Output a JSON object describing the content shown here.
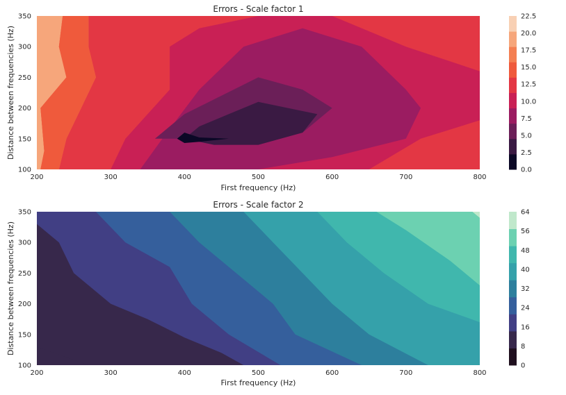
{
  "chart_data": [
    {
      "type": "contour",
      "title": "Errors - Scale factor 1",
      "xlabel": "First frequency (Hz)",
      "ylabel": "Distance between frequencies (Hz)",
      "xlim": [
        200,
        800
      ],
      "ylim": [
        100,
        350
      ],
      "xticks": [
        200,
        300,
        400,
        500,
        600,
        700,
        800
      ],
      "yticks": [
        100,
        150,
        200,
        250,
        300,
        350
      ],
      "colorbar": {
        "levels": [
          0,
          2.5,
          5,
          7.5,
          10,
          12.5,
          15,
          17.5,
          20,
          22.5
        ],
        "tick_labels": [
          "0.0",
          "2.5",
          "5.0",
          "7.5",
          "10.0",
          "12.5",
          "15.0",
          "17.5",
          "20.0",
          "22.5"
        ],
        "colors": [
          "#0b0826",
          "#3a1a43",
          "#6b1f58",
          "#9b1c61",
          "#c92055",
          "#e33744",
          "#ef5a3c",
          "#f47f52",
          "#f6a67b",
          "#f8d0b4"
        ]
      },
      "regions": [
        {
          "level_index": 8,
          "min_error": 20,
          "points": [
            [
              200,
              100
            ],
            [
              205,
              100
            ],
            [
              210,
              130
            ],
            [
              205,
              200
            ],
            [
              240,
              250
            ],
            [
              230,
              300
            ],
            [
              235,
              350
            ],
            [
              200,
              350
            ]
          ]
        },
        {
          "level_index": 7,
          "min_error": 17.5,
          "points": [
            [
              200,
              100
            ],
            [
              205,
              100
            ],
            [
              210,
              130
            ],
            [
              205,
              200
            ],
            [
              240,
              250
            ],
            [
              230,
              300
            ],
            [
              235,
              350
            ],
            [
              270,
              350
            ],
            [
              270,
              300
            ],
            [
              280,
              250
            ],
            [
              260,
              200
            ],
            [
              240,
              150
            ],
            [
              230,
              100
            ]
          ]
        },
        {
          "level_index": 6,
          "min_error": 15,
          "points": [
            [
              200,
              100
            ],
            [
              205,
              100
            ],
            [
              210,
              130
            ],
            [
              205,
              200
            ],
            [
              240,
              250
            ],
            [
              230,
              300
            ],
            [
              235,
              350
            ],
            [
              270,
              350
            ],
            [
              270,
              300
            ],
            [
              280,
              250
            ],
            [
              260,
              200
            ],
            [
              240,
              150
            ],
            [
              230,
              100
            ]
          ]
        },
        {
          "level_index": 4,
          "min_error": 10,
          "points": [
            [
              300,
              100
            ],
            [
              320,
              150
            ],
            [
              380,
              230
            ],
            [
              380,
              300
            ],
            [
              420,
              330
            ],
            [
              500,
              350
            ],
            [
              600,
              350
            ],
            [
              660,
              320
            ],
            [
              700,
              300
            ],
            [
              800,
              260
            ],
            [
              800,
              200
            ],
            [
              800,
              180
            ],
            [
              720,
              150
            ],
            [
              650,
              100
            ]
          ]
        },
        {
          "level_index": 3,
          "min_error": 7.5,
          "points": [
            [
              340,
              100
            ],
            [
              370,
              150
            ],
            [
              420,
              230
            ],
            [
              480,
              300
            ],
            [
              560,
              330
            ],
            [
              640,
              300
            ],
            [
              700,
              230
            ],
            [
              720,
              200
            ],
            [
              700,
              150
            ],
            [
              600,
              120
            ],
            [
              500,
              100
            ]
          ]
        },
        {
          "level_index": 2,
          "min_error": 5,
          "points": [
            [
              400,
              150
            ],
            [
              360,
              150
            ],
            [
              400,
              190
            ],
            [
              450,
              220
            ],
            [
              500,
              250
            ],
            [
              560,
              230
            ],
            [
              600,
              200
            ],
            [
              560,
              160
            ],
            [
              500,
              140
            ],
            [
              440,
              140
            ]
          ]
        },
        {
          "level_index": 1,
          "min_error": 2.5,
          "points": [
            [
              400,
              150
            ],
            [
              420,
              170
            ],
            [
              460,
              190
            ],
            [
              500,
              210
            ],
            [
              540,
              200
            ],
            [
              580,
              190
            ],
            [
              560,
              160
            ],
            [
              500,
              140
            ],
            [
              440,
              140
            ]
          ]
        },
        {
          "level_index": 0,
          "min_error": 0,
          "points": [
            [
              390,
              150
            ],
            [
              400,
              160
            ],
            [
              420,
              152
            ],
            [
              460,
              150
            ],
            [
              420,
              145
            ],
            [
              400,
              143
            ]
          ]
        }
      ]
    },
    {
      "type": "contour",
      "title": "Errors - Scale factor 2",
      "xlabel": "First frequency (Hz)",
      "ylabel": "Distance between frequencies (Hz)",
      "xlim": [
        200,
        800
      ],
      "ylim": [
        100,
        350
      ],
      "xticks": [
        200,
        300,
        400,
        500,
        600,
        700,
        800
      ],
      "yticks": [
        100,
        150,
        200,
        250,
        300,
        350
      ],
      "colorbar": {
        "levels": [
          0,
          8,
          16,
          24,
          32,
          40,
          48,
          56,
          64
        ],
        "tick_labels": [
          "0",
          "8",
          "16",
          "24",
          "32",
          "40",
          "48",
          "56",
          "64"
        ],
        "colors": [
          "#1f0f1e",
          "#37284b",
          "#413f84",
          "#355f9c",
          "#2d7f9d",
          "#35a1aa",
          "#40b7ad",
          "#6cd1b1",
          "#c0e8cb"
        ]
      },
      "regions": [
        {
          "level_index": 1,
          "min_error": 8,
          "points": [
            [
              200,
              130
            ],
            [
              270,
              100
            ],
            [
              800,
              100
            ],
            [
              800,
              350
            ],
            [
              200,
              350
            ]
          ]
        },
        {
          "level_index": 2,
          "min_error": 16,
          "points": [
            [
              200,
              330
            ],
            [
              230,
              300
            ],
            [
              250,
              250
            ],
            [
              300,
              200
            ],
            [
              350,
              175
            ],
            [
              400,
              145
            ],
            [
              450,
              120
            ],
            [
              480,
              100
            ],
            [
              800,
              100
            ],
            [
              800,
              350
            ],
            [
              200,
              350
            ]
          ]
        },
        {
          "level_index": 3,
          "min_error": 24,
          "points": [
            [
              280,
              350
            ],
            [
              320,
              300
            ],
            [
              380,
              260
            ],
            [
              410,
              200
            ],
            [
              460,
              150
            ],
            [
              530,
              100
            ],
            [
              800,
              100
            ],
            [
              800,
              350
            ]
          ]
        },
        {
          "level_index": 4,
          "min_error": 32,
          "points": [
            [
              380,
              350
            ],
            [
              420,
              300
            ],
            [
              470,
              250
            ],
            [
              520,
              200
            ],
            [
              550,
              150
            ],
            [
              640,
              100
            ],
            [
              800,
              100
            ],
            [
              800,
              350
            ]
          ]
        },
        {
          "level_index": 5,
          "min_error": 40,
          "points": [
            [
              480,
              350
            ],
            [
              520,
              300
            ],
            [
              560,
              250
            ],
            [
              600,
              200
            ],
            [
              650,
              150
            ],
            [
              730,
              100
            ],
            [
              800,
              100
            ],
            [
              800,
              350
            ]
          ]
        },
        {
          "level_index": 6,
          "min_error": 48,
          "points": [
            [
              580,
              350
            ],
            [
              620,
              300
            ],
            [
              670,
              250
            ],
            [
              730,
              200
            ],
            [
              800,
              170
            ],
            [
              800,
              350
            ]
          ]
        },
        {
          "level_index": 7,
          "min_error": 56,
          "points": [
            [
              660,
              350
            ],
            [
              700,
              320
            ],
            [
              760,
              270
            ],
            [
              800,
              230
            ],
            [
              800,
              350
            ]
          ]
        },
        {
          "level_index": 8,
          "min_error": 64,
          "points": [
            [
              790,
              350
            ],
            [
              800,
              340
            ],
            [
              800,
              350
            ]
          ]
        }
      ]
    }
  ]
}
